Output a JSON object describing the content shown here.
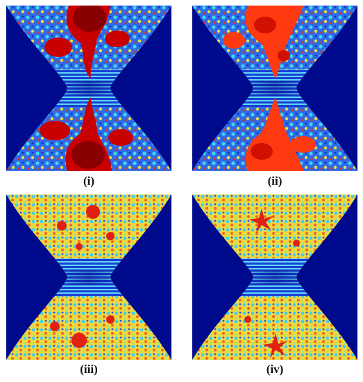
{
  "figure": {
    "panels": [
      {
        "label": "(i)"
      },
      {
        "label": "(ii)"
      },
      {
        "label": "(iii)"
      },
      {
        "label": "(iv)"
      }
    ]
  }
}
